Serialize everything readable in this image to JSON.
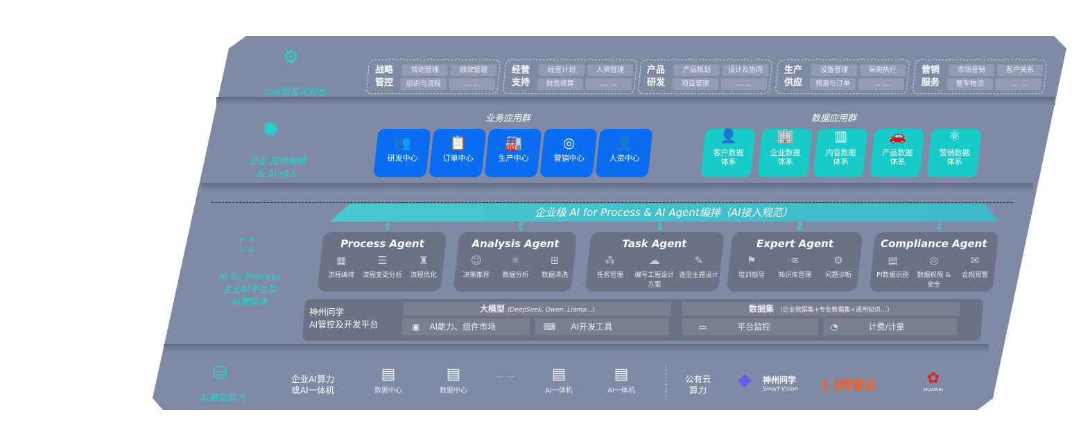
{
  "layers": {
    "front": "企业数智化前台",
    "decouple": [
      "企业 应用解耦",
      "& AI 侵入"
    ],
    "ai": [
      "AI for Process",
      "企业AI平台及",
      "AI智能体"
    ],
    "base": "AI基础算力"
  },
  "front_groups": [
    {
      "title": [
        "战略",
        "管控"
      ],
      "items": [
        "规划管理",
        "绩效管理",
        "组织与流程",
        "… …"
      ]
    },
    {
      "title": [
        "经营",
        "支持"
      ],
      "items": [
        "经营计划",
        "人资管理",
        "财务核算",
        "… …"
      ]
    },
    {
      "title": [
        "产品",
        "研发"
      ],
      "items": [
        "产品规划",
        "设计及协同",
        "项目管理",
        "… …"
      ]
    },
    {
      "title": [
        "生产",
        "供应"
      ],
      "items": [
        "设备管理",
        "采购执行",
        "预测与订单",
        "… …"
      ]
    },
    {
      "title": [
        "营销",
        "服务"
      ],
      "items": [
        "市场营销",
        "客户关系",
        "整车物流",
        "… …"
      ]
    }
  ],
  "business_apps": {
    "title": "业务应用群",
    "items": [
      "研发中心",
      "订单中心",
      "生产中心",
      "营销中心",
      "人资中心"
    ]
  },
  "data_apps": {
    "title": "数据应用群",
    "items": [
      [
        "客户数据",
        "体系"
      ],
      [
        "企业数据",
        "体系"
      ],
      [
        "内容数据",
        "体系"
      ],
      [
        "产品数据",
        "体系"
      ],
      [
        "营销数据",
        "体系"
      ]
    ]
  },
  "banner": "企业级 AI for Process & AI Agent编排（AI接入规范）",
  "agents": [
    {
      "name": "Process Agent",
      "items": [
        "流程编排",
        "流程变更分析",
        "流程优化"
      ]
    },
    {
      "name": "Analysis Agent",
      "items": [
        "决策推荐",
        "数据分析",
        "数据清洗"
      ]
    },
    {
      "name": "Task Agent",
      "items": [
        "任务管理",
        "编写工程设计方案",
        "造型主题设计"
      ]
    },
    {
      "name": "Expert Agent",
      "items": [
        "培训指导",
        "知识库管理",
        "问题诊断"
      ]
    },
    {
      "name": "Compliance Agent",
      "items": [
        "PI数据识别",
        "数据权限 & 安全",
        "合规预警"
      ]
    }
  ],
  "platform": {
    "title": [
      "神州问学",
      "AI管控及开发平台"
    ],
    "model": "大模型",
    "model_note": "(DeepSeek, Qwen, Llama…)",
    "dataset": "数据集",
    "dataset_note": "（企业数据集+专业数据集+通用知识…）",
    "cells": [
      "AI能力、组件市场",
      "AI开发工具",
      "平台监控",
      "计费/计量"
    ]
  },
  "compute": {
    "label": [
      "企业AI算力",
      "或AI一体机"
    ],
    "items": [
      "数据中心",
      "数据中心",
      "… …",
      "AI一体机",
      "AI一体机"
    ],
    "cloud": [
      "公有云",
      "算力"
    ],
    "vendors": {
      "shenzhou": "神州问学",
      "shenzhou_sub": "Smart Vision",
      "aliyun": "阿里云",
      "huawei": "HUAWEI"
    }
  },
  "colors": {
    "panel": "#7f8ba5",
    "accent": "#1fd6d0",
    "business": "#0a6cf0",
    "data": "#17cbc8",
    "agent": "#6b7286",
    "arrow": "#e040f0"
  }
}
